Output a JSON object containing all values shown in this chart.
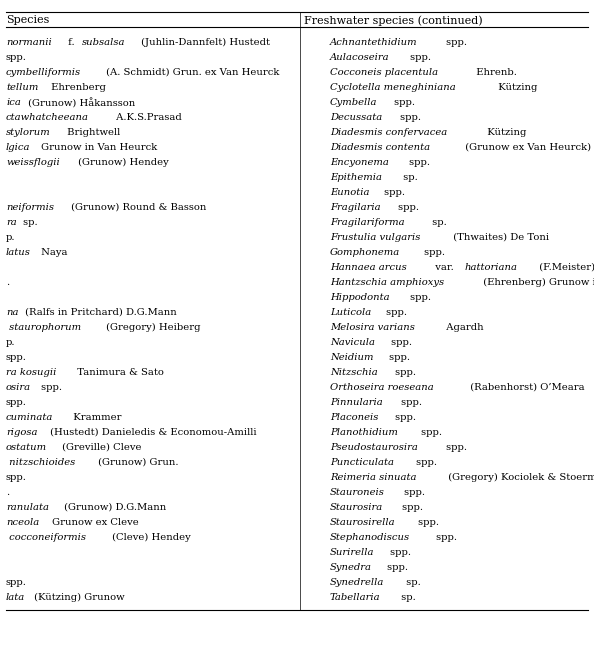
{
  "bg_color": "#ffffff",
  "text_color": "#000000",
  "font_size": 7.2,
  "header_font_size": 8.0,
  "left_entries": [
    [
      [
        "i",
        "normanii"
      ],
      [
        " f. "
      ],
      [
        "i",
        "subsalsa"
      ],
      [
        " (Juhlin-Dannfelt) Hustedt"
      ]
    ],
    [
      [
        "n",
        "spp."
      ]
    ],
    [
      [
        "i",
        "cymbelliformis"
      ],
      [
        " (A. Schmidt) Grun. ex Van Heurck"
      ]
    ],
    [
      [
        "i",
        "tellum"
      ],
      [
        " Ehrenberg"
      ]
    ],
    [
      [
        "i",
        "ica"
      ],
      [
        " (Grunow) Håkansson"
      ]
    ],
    [
      [
        "i",
        "ctawhatcheeana"
      ],
      [
        " A.K.S.Prasad"
      ]
    ],
    [
      [
        "i",
        "stylorum"
      ],
      [
        " Brightwell"
      ]
    ],
    [
      [
        "i",
        "lgica"
      ],
      [
        " Grunow in Van Heurck"
      ]
    ],
    [
      [
        "i",
        "weissflogii"
      ],
      [
        " (Grunow) Hendey"
      ]
    ],
    [],
    [],
    [
      [
        "i",
        "neiformis"
      ],
      [
        " (Grunow) Round & Basson"
      ]
    ],
    [
      [
        "i",
        "ra"
      ],
      [
        " sp."
      ]
    ],
    [
      [
        "n",
        "p."
      ]
    ],
    [
      [
        "i",
        "latus"
      ],
      [
        " Naya"
      ]
    ],
    [],
    [
      [
        "n",
        "."
      ]
    ],
    [],
    [
      [
        "i",
        "na"
      ],
      [
        " (Ralfs in Pritchard) D.G.Mann"
      ]
    ],
    [
      [
        "i",
        " staurophorum"
      ],
      [
        " (Gregory) Heiberg"
      ]
    ],
    [
      [
        "n",
        "p."
      ]
    ],
    [
      [
        "n",
        "spp."
      ]
    ],
    [
      [
        "i",
        "ra kosugii"
      ],
      [
        "  Tanimura & Sato"
      ]
    ],
    [
      [
        "i",
        "osira"
      ],
      [
        " spp."
      ]
    ],
    [
      [
        "n",
        "spp."
      ]
    ],
    [
      [
        "i",
        "cuminata"
      ],
      [
        "  Krammer"
      ]
    ],
    [
      [
        "i",
        "rigosa"
      ],
      [
        " (Hustedt) Danieledis & Economou-Amilli"
      ]
    ],
    [
      [
        "i",
        "ostatum"
      ],
      [
        " (Greville) Cleve"
      ]
    ],
    [
      [
        "i",
        " nitzschioides"
      ],
      [
        " (Grunow) Grun."
      ]
    ],
    [
      [
        "n",
        "spp."
      ]
    ],
    [
      [
        "n",
        "."
      ]
    ],
    [
      [
        "i",
        "ranulata"
      ],
      [
        " (Grunow) D.G.Mann"
      ]
    ],
    [
      [
        "i",
        "nceola"
      ],
      [
        " Grunow ex Cleve"
      ]
    ],
    [
      [
        "i",
        " cocconeiformis"
      ],
      [
        " (Cleve) Hendey"
      ]
    ],
    [],
    [],
    [
      [
        "n",
        "spp."
      ]
    ],
    [
      [
        "i",
        "lata"
      ],
      [
        " (Kützing) Grunow"
      ]
    ]
  ],
  "right_entries": [
    [
      [
        "i",
        "Achnantethidium"
      ],
      [
        " spp."
      ]
    ],
    [
      [
        "i",
        "Aulacoseira"
      ],
      [
        " spp."
      ]
    ],
    [
      [
        "i",
        "Cocconeis placentula"
      ],
      [
        "  Ehrenb."
      ]
    ],
    [
      [
        "i",
        "Cyclotella meneghiniana"
      ],
      [
        "  Kützing"
      ]
    ],
    [
      [
        "i",
        "Cymbella"
      ],
      [
        " spp."
      ]
    ],
    [
      [
        "i",
        "Decussata"
      ],
      [
        " spp."
      ]
    ],
    [
      [
        "i",
        "Diadesmis confervacea"
      ],
      [
        "  Kützing"
      ]
    ],
    [
      [
        "i",
        "Diadesmis contenta"
      ],
      [
        "  (Grunow ex Van Heurck) D.G. Mann"
      ]
    ],
    [
      [
        "i",
        "Encyonema"
      ],
      [
        " spp."
      ]
    ],
    [
      [
        "i",
        "Epithemia"
      ],
      [
        "  sp."
      ]
    ],
    [
      [
        "i",
        "Eunotia"
      ],
      [
        " spp."
      ]
    ],
    [
      [
        "i",
        "Fragilaria"
      ],
      [
        " spp."
      ]
    ],
    [
      [
        "i",
        "Fragilariforma"
      ],
      [
        "  sp."
      ]
    ],
    [
      [
        "i",
        "Frustulia vulgaris"
      ],
      [
        "  (Thwaites) De Toni"
      ]
    ],
    [
      [
        "i",
        "Gomphonema"
      ],
      [
        " spp."
      ]
    ],
    [
      [
        "i",
        "Hannaea arcus"
      ],
      [
        "  var. "
      ],
      [
        "i",
        "hattoriana"
      ],
      [
        "  (F.Meister) Ohtsuka"
      ]
    ],
    [
      [
        "i",
        "Hantzschia amphioxys"
      ],
      [
        "  (Ehrenberg) Grunow in Cleve et Gru"
      ]
    ],
    [
      [
        "i",
        "Hippodonta"
      ],
      [
        " spp."
      ]
    ],
    [
      [
        "i",
        "Luticola"
      ],
      [
        " spp."
      ]
    ],
    [
      [
        "i",
        "Melosira varians"
      ],
      [
        "  Agardh"
      ]
    ],
    [
      [
        "i",
        "Navicula"
      ],
      [
        " spp."
      ]
    ],
    [
      [
        "i",
        "Neidium"
      ],
      [
        " spp."
      ]
    ],
    [
      [
        "i",
        "Nitzschia"
      ],
      [
        " spp."
      ]
    ],
    [
      [
        "i",
        "Orthoseira roeseana"
      ],
      [
        "  (Rabenhorst) O’Meara"
      ]
    ],
    [
      [
        "i",
        "Pinnularia"
      ],
      [
        " spp."
      ]
    ],
    [
      [
        "i",
        "Placoneis"
      ],
      [
        " spp."
      ]
    ],
    [
      [
        "i",
        "Planothidium"
      ],
      [
        " spp."
      ]
    ],
    [
      [
        "i",
        "Pseudostaurosira"
      ],
      [
        " spp."
      ]
    ],
    [
      [
        "i",
        "Puncticulata"
      ],
      [
        " spp."
      ]
    ],
    [
      [
        "i",
        "Reimeria sinuata"
      ],
      [
        "  (Gregory) Kociolek & Stoermer"
      ]
    ],
    [
      [
        "i",
        "Stauroneis"
      ],
      [
        " spp."
      ]
    ],
    [
      [
        "i",
        "Staurosira"
      ],
      [
        " spp."
      ]
    ],
    [
      [
        "i",
        "Staurosirella"
      ],
      [
        " spp."
      ]
    ],
    [
      [
        "i",
        "Stephanodiscus"
      ],
      [
        " spp."
      ]
    ],
    [
      [
        "i",
        "Surirella"
      ],
      [
        " spp."
      ]
    ],
    [
      [
        "i",
        "Synedra"
      ],
      [
        " spp."
      ]
    ],
    [
      [
        "i",
        "Synedrella"
      ],
      [
        "  sp."
      ]
    ],
    [
      [
        "i",
        "Tabellaria"
      ],
      [
        "  sp."
      ]
    ]
  ]
}
